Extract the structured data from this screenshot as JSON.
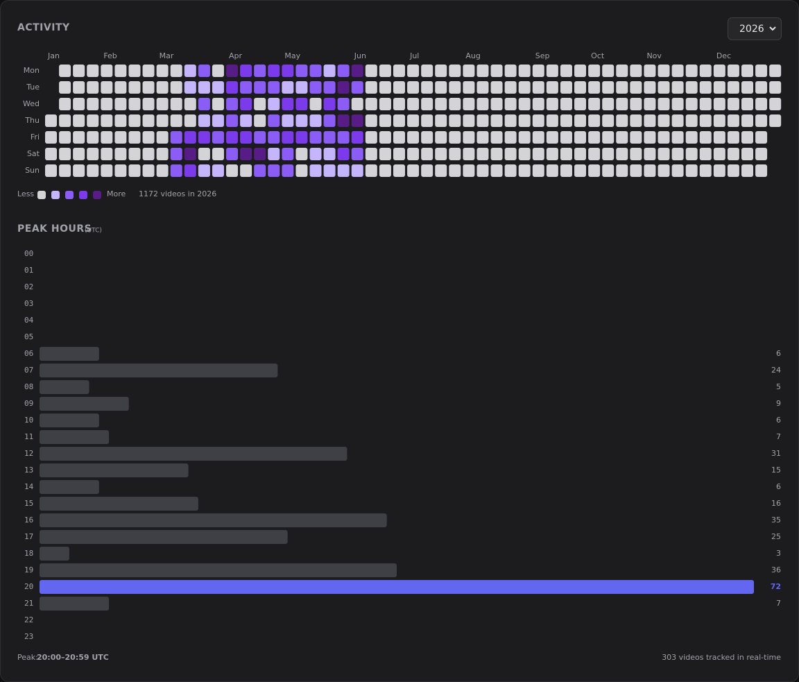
{
  "activity": {
    "title": "ACTIVITY",
    "year_select": "2026",
    "months": [
      "Jan",
      "Feb",
      "Mar",
      "Apr",
      "May",
      "Jun",
      "Jul",
      "Aug",
      "Sep",
      "Oct",
      "Nov",
      "Dec"
    ],
    "days": [
      "Mon",
      "Tue",
      "Wed",
      "Thu",
      "Fri",
      "Sat",
      "Sun"
    ],
    "level_colors": [
      "#d4d4d8",
      "#c4b5fd",
      "#8b5cf6",
      "#7c3aed",
      "#581c87"
    ],
    "grid": [
      [
        null,
        0,
        0,
        0,
        0,
        0,
        0,
        0,
        0,
        0,
        1,
        2,
        0,
        4,
        3,
        2,
        3,
        3,
        2,
        2,
        1,
        2,
        4,
        0,
        0,
        0,
        0,
        0,
        0,
        0,
        0,
        0,
        0,
        0,
        0,
        0,
        0,
        0,
        0,
        0,
        0,
        0,
        0,
        0,
        0,
        0,
        0,
        0,
        0,
        0,
        0,
        0,
        0
      ],
      [
        null,
        0,
        0,
        0,
        0,
        0,
        0,
        0,
        0,
        0,
        1,
        1,
        1,
        3,
        2,
        2,
        2,
        1,
        1,
        2,
        2,
        4,
        2,
        0,
        0,
        0,
        0,
        0,
        0,
        0,
        0,
        0,
        0,
        0,
        0,
        0,
        0,
        0,
        0,
        0,
        0,
        0,
        0,
        0,
        0,
        0,
        0,
        0,
        0,
        0,
        0,
        0,
        0
      ],
      [
        null,
        0,
        0,
        0,
        0,
        0,
        0,
        0,
        0,
        0,
        0,
        2,
        0,
        2,
        3,
        0,
        1,
        3,
        3,
        0,
        3,
        2,
        0,
        0,
        0,
        0,
        0,
        0,
        0,
        0,
        0,
        0,
        0,
        0,
        0,
        0,
        0,
        0,
        0,
        0,
        0,
        0,
        0,
        0,
        0,
        0,
        0,
        0,
        0,
        0,
        0,
        0,
        0
      ],
      [
        0,
        0,
        0,
        0,
        0,
        0,
        0,
        0,
        0,
        0,
        0,
        1,
        1,
        2,
        1,
        0,
        2,
        1,
        1,
        1,
        2,
        4,
        4,
        0,
        0,
        0,
        0,
        0,
        0,
        0,
        0,
        0,
        0,
        0,
        0,
        0,
        0,
        0,
        0,
        0,
        0,
        0,
        0,
        0,
        0,
        0,
        0,
        0,
        0,
        0,
        0,
        0,
        0
      ],
      [
        0,
        0,
        0,
        0,
        0,
        0,
        0,
        0,
        0,
        2,
        3,
        3,
        2,
        3,
        3,
        2,
        2,
        3,
        3,
        2,
        2,
        2,
        3,
        0,
        0,
        0,
        0,
        0,
        0,
        0,
        0,
        0,
        0,
        0,
        0,
        0,
        0,
        0,
        0,
        0,
        0,
        0,
        0,
        0,
        0,
        0,
        0,
        0,
        0,
        0,
        0,
        0,
        null
      ],
      [
        0,
        0,
        0,
        0,
        0,
        0,
        0,
        0,
        0,
        2,
        4,
        0,
        0,
        2,
        4,
        4,
        1,
        2,
        0,
        1,
        1,
        3,
        2,
        0,
        0,
        0,
        0,
        0,
        0,
        0,
        0,
        0,
        0,
        0,
        0,
        0,
        0,
        0,
        0,
        0,
        0,
        0,
        0,
        0,
        0,
        0,
        0,
        0,
        0,
        0,
        0,
        0,
        null
      ],
      [
        0,
        0,
        0,
        0,
        0,
        0,
        0,
        0,
        0,
        2,
        3,
        1,
        1,
        0,
        0,
        2,
        2,
        2,
        0,
        1,
        1,
        1,
        1,
        0,
        0,
        0,
        0,
        0,
        0,
        0,
        0,
        0,
        0,
        0,
        0,
        0,
        0,
        0,
        0,
        0,
        0,
        0,
        0,
        0,
        0,
        0,
        0,
        0,
        0,
        0,
        0,
        0,
        null
      ]
    ],
    "legend_less": "Less",
    "legend_more": "More",
    "summary": "1172 videos in 2026"
  },
  "peak_hours": {
    "title": "PEAK HOURS",
    "subtitle": "(UTC)",
    "hours": [
      "00",
      "01",
      "02",
      "03",
      "04",
      "05",
      "06",
      "07",
      "08",
      "09",
      "10",
      "11",
      "12",
      "13",
      "14",
      "15",
      "16",
      "17",
      "18",
      "19",
      "20",
      "21",
      "22",
      "23"
    ],
    "values": [
      null,
      null,
      null,
      null,
      null,
      null,
      6,
      24,
      5,
      9,
      6,
      7,
      31,
      15,
      6,
      16,
      35,
      25,
      3,
      36,
      72,
      7,
      null,
      null
    ],
    "bar_color": "#3f3f46",
    "peak_color": "#6366f1",
    "peak_label": "Peak:",
    "peak_range": "20:00–20:59 UTC",
    "tracked": "303 videos tracked in real-time"
  }
}
